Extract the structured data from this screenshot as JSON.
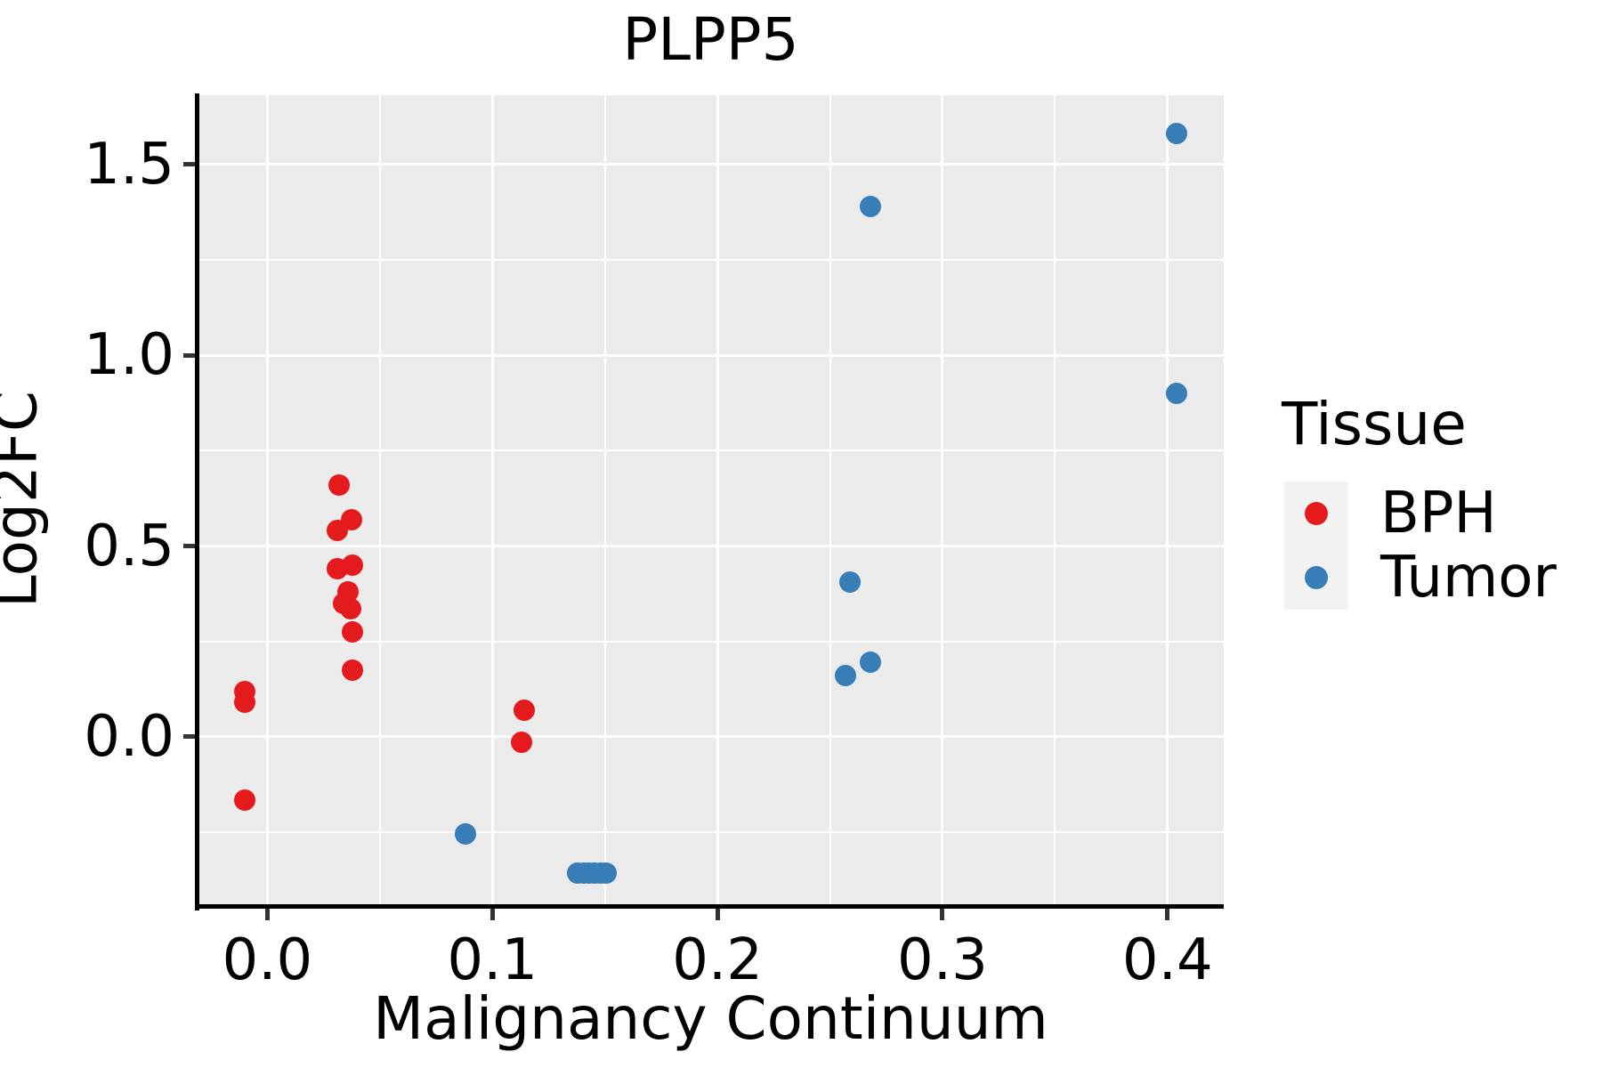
{
  "chart_data": {
    "type": "scatter",
    "title": "PLPP5",
    "xlabel": "Malignancy Continuum",
    "ylabel": "Log2FC",
    "xlim": [
      -0.031,
      0.425
    ],
    "ylim": [
      -0.443,
      1.681
    ],
    "grid": true,
    "legend_position": "right",
    "x_major_ticks": [
      0.0,
      0.1,
      0.2,
      0.3,
      0.4
    ],
    "x_tick_labels": [
      "0.0",
      "0.1",
      "0.2",
      "0.3",
      "0.4"
    ],
    "x_minor_ticks": [
      0.05,
      0.15,
      0.25,
      0.35
    ],
    "y_major_ticks": [
      0.0,
      0.5,
      1.0,
      1.5
    ],
    "y_tick_labels": [
      "0.0",
      "0.5",
      "1.0",
      "1.5"
    ],
    "y_minor_ticks": [
      -0.25,
      0.25,
      0.75,
      1.25
    ],
    "series": [
      {
        "name": "BPH",
        "color": "#E41A1C",
        "points": [
          [
            -0.01,
            0.12
          ],
          [
            -0.01,
            0.09
          ],
          [
            -0.01,
            -0.165
          ],
          [
            0.032,
            0.66
          ],
          [
            0.0375,
            0.57
          ],
          [
            0.031,
            0.54
          ],
          [
            0.031,
            0.44
          ],
          [
            0.038,
            0.45
          ],
          [
            0.036,
            0.38
          ],
          [
            0.034,
            0.35
          ],
          [
            0.037,
            0.335
          ],
          [
            0.038,
            0.275
          ],
          [
            0.038,
            0.175
          ],
          [
            0.114,
            0.07
          ],
          [
            0.113,
            -0.015
          ]
        ]
      },
      {
        "name": "Tumor",
        "color": "#377EB8",
        "points": [
          [
            0.088,
            -0.255
          ],
          [
            0.138,
            -0.357
          ],
          [
            0.1405,
            -0.357
          ],
          [
            0.143,
            -0.357
          ],
          [
            0.1455,
            -0.357
          ],
          [
            0.148,
            -0.357
          ],
          [
            0.1505,
            -0.357
          ],
          [
            0.259,
            0.405
          ],
          [
            0.257,
            0.16
          ],
          [
            0.268,
            0.195
          ],
          [
            0.268,
            1.39
          ],
          [
            0.404,
            0.9
          ],
          [
            0.404,
            1.58
          ]
        ]
      }
    ]
  },
  "legend": {
    "title": "Tissue",
    "items": [
      {
        "label": "BPH",
        "color": "#E41A1C"
      },
      {
        "label": "Tumor",
        "color": "#377EB8"
      }
    ]
  },
  "colors": {
    "panel_bg": "#EBEBEB",
    "grid": "#FFFFFF",
    "axis": "#000000",
    "tick": "#333333",
    "legend_key_bg": "#F2F2F2"
  }
}
